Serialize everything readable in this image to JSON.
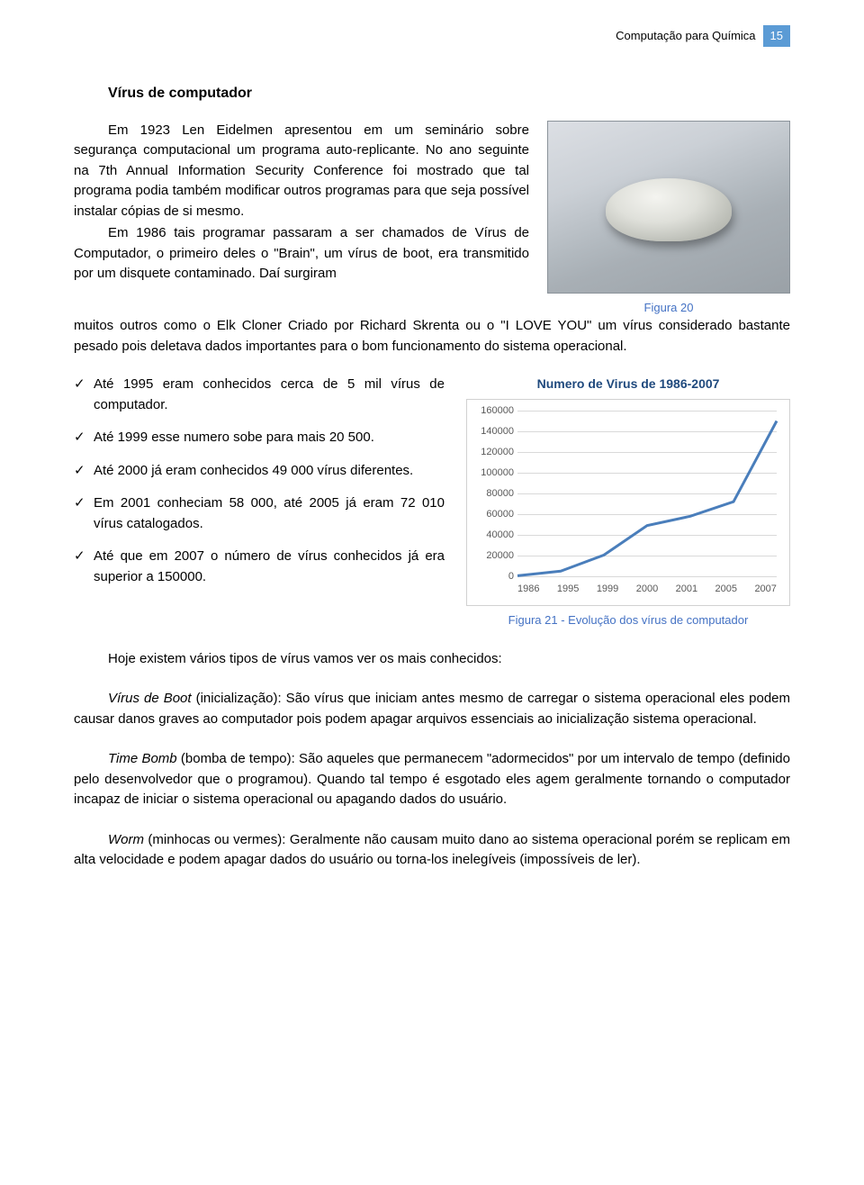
{
  "header": {
    "doc_title": "Computação para Química",
    "page_number": "15"
  },
  "section": {
    "title": "Vírus de computador"
  },
  "paragraph1": "Em 1923 Len Eidelmen apresentou em um seminário sobre segurança computacional um programa auto-replicante. No ano seguinte na 7th Annual Information Security Conference foi mostrado que tal programa podia também modificar outros programas para que seja possível instalar cópias de si mesmo.",
  "paragraph1b": "Em 1986 tais programar passaram a ser chamados de Vírus de Computador, o primeiro deles o \"Brain\", um vírus de boot, era transmitido por um disquete contaminado. Daí surgiram",
  "figure1_caption": "Figura 20",
  "paragraph2": "muitos outros como o Elk Cloner Criado por Richard Skrenta ou o \"I LOVE YOU\" um vírus considerado bastante pesado pois deletava dados importantes para o bom funcionamento do sistema operacional.",
  "bullets": [
    "Até 1995 eram conhecidos cerca de 5 mil vírus de computador.",
    "Até 1999 esse numero sobe para mais 20 500.",
    "Até 2000 já eram conhecidos 49 000 vírus diferentes.",
    "Em 2001 conheciam 58 000, até 2005 já eram 72 010 vírus catalogados.",
    "Até que em 2007 o número de vírus conhecidos já era superior a 150000."
  ],
  "chart": {
    "type": "line",
    "title": "Numero de Virus de 1986-2007",
    "categories": [
      "1986",
      "1995",
      "1999",
      "2000",
      "2001",
      "2005",
      "2007"
    ],
    "values": [
      500,
      5000,
      20500,
      49000,
      58000,
      72010,
      150000
    ],
    "ylim": [
      0,
      160000
    ],
    "ytick_step": 20000,
    "line_color": "#4a7ebb",
    "grid_color": "#d9d9d9",
    "tick_label_color": "#595959",
    "background_color": "#ffffff",
    "title_color": "#1f497d",
    "line_width": 3,
    "label_fontsize": 11,
    "title_fontsize": 14
  },
  "figure2_caption": "Figura 21 - Evolução dos vírus de computador",
  "paragraph3": "Hoje existem vários tipos de vírus vamos ver os mais conhecidos:",
  "paragraph4_lead": "Vírus de Boot",
  "paragraph4_rest": " (inicialização): São vírus que iniciam antes mesmo de carregar o sistema operacional eles podem causar danos graves ao computador pois podem apagar arquivos essenciais ao inicialização sistema operacional.",
  "paragraph5_lead": "Time Bomb",
  "paragraph5_rest": " (bomba de tempo): São aqueles que permanecem \"adormecidos\" por um intervalo de tempo (definido pelo desenvolvedor que o programou). Quando tal tempo é esgotado eles agem geralmente tornando o computador incapaz de iniciar o sistema operacional ou apagando dados do usuário.",
  "paragraph6_lead": "Worm",
  "paragraph6_rest": " (minhocas ou vermes): Geralmente não causam muito dano ao sistema operacional porém se replicam em alta velocidade e podem apagar dados do usuário ou torna-los inelegíveis (impossíveis de ler)."
}
